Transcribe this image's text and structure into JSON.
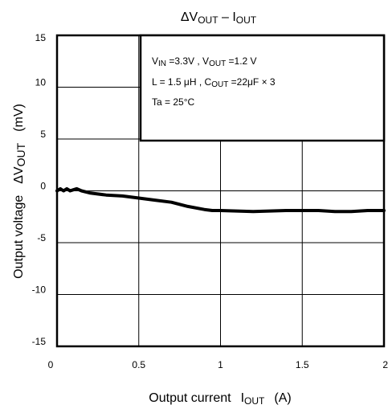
{
  "chart_data": {
    "type": "line",
    "title": {
      "part1_main": "ΔV",
      "part1_sub": "OUT",
      "dash": " – ",
      "part2_main": "I",
      "part2_sub": "OUT"
    },
    "xlabel": {
      "main": "Output current",
      "symbol_main": "I",
      "symbol_sub": "OUT",
      "unit": "(A)"
    },
    "ylabel": {
      "main": "Output voltage",
      "symbol_main": "ΔV",
      "symbol_sub": "OUT",
      "unit": "(mV)"
    },
    "xlim": [
      0,
      2
    ],
    "ylim": [
      -15,
      15
    ],
    "x_ticks": [
      "0",
      "0.5",
      "1",
      "1.5",
      "2"
    ],
    "y_ticks": [
      "15",
      "10",
      "5",
      "0",
      "-5",
      "-10",
      "-15"
    ],
    "grid": true,
    "series": [
      {
        "x": [
          0.0,
          0.02,
          0.04,
          0.06,
          0.08,
          0.1,
          0.12,
          0.15,
          0.2,
          0.3,
          0.4,
          0.5,
          0.6,
          0.7,
          0.8,
          0.9,
          0.95,
          1.0,
          1.2,
          1.4,
          1.5,
          1.6,
          1.7,
          1.8,
          1.9,
          2.0
        ],
        "y": [
          0.0,
          0.2,
          0.0,
          0.2,
          0.0,
          0.1,
          0.2,
          0.0,
          -0.2,
          -0.4,
          -0.5,
          -0.7,
          -0.9,
          -1.1,
          -1.5,
          -1.8,
          -1.9,
          -1.9,
          -2.0,
          -1.9,
          -1.9,
          -1.9,
          -2.0,
          -2.0,
          -1.9,
          -1.9
        ]
      }
    ],
    "annotation_box": {
      "line1": {
        "vin_main": "V",
        "vin_sub": "IN",
        "vin_val": " =3.3V , ",
        "vout_main": "V",
        "vout_sub": "OUT",
        "vout_val": " =1.2 V"
      },
      "line2": {
        "l_text": "L = 1.5 μH , ",
        "c_main": "C",
        "c_sub": "OUT",
        "c_val": " =22μF × 3"
      },
      "line3": "Ta = 25°C"
    }
  }
}
